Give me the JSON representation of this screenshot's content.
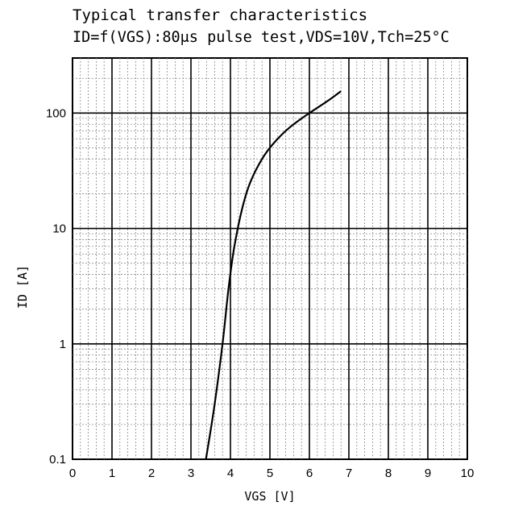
{
  "title": "Typical transfer characteristics",
  "subtitle": "ID=f(VGS):80μs pulse test,VDS=10V,Tch=25°C",
  "chart_data": {
    "type": "line",
    "xlabel": "VGS [V]",
    "ylabel": "ID [A]",
    "xlim": [
      0,
      10
    ],
    "ylim": [
      0.1,
      300
    ],
    "yscale": "log",
    "grid": true,
    "xticks": [
      "0",
      "1",
      "2",
      "3",
      "4",
      "5",
      "6",
      "7",
      "8",
      "9",
      "10"
    ],
    "yticks": [
      "0.1",
      "1",
      "10",
      "100"
    ],
    "series": [
      {
        "x": [
          3.38,
          3.6,
          3.8,
          3.95,
          4.1,
          4.3,
          4.5,
          4.8,
          5.1,
          5.5,
          6.0,
          6.5,
          6.8
        ],
        "y": [
          0.1,
          0.3,
          1.0,
          3.0,
          7.0,
          15,
          25,
          40,
          55,
          75,
          100,
          130,
          155
        ]
      }
    ]
  }
}
